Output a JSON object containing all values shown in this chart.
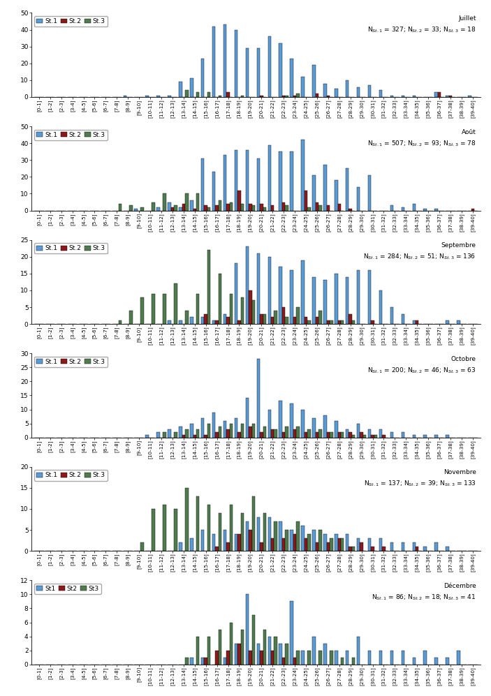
{
  "months": [
    "Juillet",
    "Août",
    "Septembre",
    "Octobre",
    "Novembre",
    "Décembre"
  ],
  "legend_labels_main": [
    "St.1",
    "St.2",
    "St.3"
  ],
  "legend_labels_last": [
    "St1",
    "St2",
    "St3"
  ],
  "colors": [
    "#5B9BD5",
    "#8B1A1A",
    "#4E7C4E"
  ],
  "annotations": [
    "Juillet\nN$_{St.1}$ = 327; N$_{St.2}$ = 33; N$_{St.3}$ = 18",
    "Août\nN$_{St.1}$ = 507; N$_{St.2}$ = 93; N$_{St.3}$ = 78",
    "Septembre\nN$_{St.1}$ = 284; N$_{St.2}$ = 51; N$_{St.3}$ = 136",
    "Octobre\nN$_{St.1}$ = 200; N$_{St.2}$ = 46; N$_{St.3}$ = 63",
    "Novembre\nN$_{St.1}$ = 137; N$_{St.2}$ = 39; N$_{St.3}$ = 133",
    "Décembre\nN$_{St.1}$ = 86; N$_{St.2}$ = 18; N$_{St.3}$ = 41"
  ],
  "ylims": [
    50,
    50,
    25,
    30,
    20,
    12
  ],
  "yticks": [
    [
      0,
      10,
      20,
      30,
      40,
      50
    ],
    [
      0,
      10,
      20,
      30,
      40,
      50
    ],
    [
      0,
      5,
      10,
      15,
      20,
      25
    ],
    [
      0,
      5,
      10,
      15,
      20,
      25,
      30
    ],
    [
      0,
      5,
      10,
      15,
      20
    ],
    [
      0,
      2,
      4,
      6,
      8,
      10,
      12
    ]
  ],
  "bins": [
    "[0-1]",
    "[1-2]",
    "[2-3]",
    "[3-4]",
    "[4-5]",
    "[5-6]",
    "[6-7]",
    "[7-8]",
    "[8-9]",
    "[9-10]",
    "[10-11]",
    "[11-12]",
    "[12-13]",
    "[13-14]",
    "[14-15]",
    "[15-16]",
    "[16-17]",
    "[17-18]",
    "[18-19]",
    "[19-20]",
    "[20-21]",
    "[21-22]",
    "[22-23]",
    "[23-24]",
    "[24-25]",
    "[25-26]",
    "[26-27]",
    "[27-28]",
    "[28-29]",
    "[29-30]",
    "[30-31]",
    "[31-32]",
    "[32-33]",
    "[33-34]",
    "[34-35]",
    "[35-36]",
    "[36-37]",
    "[37-38]",
    "[38-39]",
    "[39-40]"
  ],
  "data": {
    "Juillet": {
      "St.1": [
        0,
        0,
        0,
        0,
        0,
        0,
        0,
        0,
        1,
        0,
        1,
        1,
        1,
        9,
        11,
        23,
        42,
        43,
        40,
        29,
        29,
        36,
        32,
        23,
        12,
        19,
        8,
        5,
        10,
        6,
        7,
        4,
        1,
        1,
        1,
        0,
        3,
        1,
        0,
        1
      ],
      "St.2": [
        0,
        0,
        0,
        0,
        0,
        0,
        0,
        0,
        0,
        0,
        0,
        0,
        0,
        0,
        0,
        0,
        0,
        3,
        0,
        0,
        1,
        0,
        1,
        1,
        0,
        2,
        1,
        0,
        0,
        0,
        0,
        0,
        0,
        0,
        0,
        0,
        3,
        1,
        0,
        0
      ],
      "St.3": [
        0,
        0,
        0,
        0,
        0,
        0,
        0,
        0,
        0,
        0,
        0,
        0,
        0,
        4,
        3,
        3,
        1,
        0,
        1,
        0,
        0,
        0,
        1,
        2,
        0,
        0,
        0,
        0,
        0,
        0,
        0,
        0,
        0,
        0,
        0,
        0,
        0,
        0,
        0,
        0
      ]
    },
    "Août": {
      "St.1": [
        0,
        0,
        0,
        0,
        0,
        0,
        0,
        0,
        0,
        1,
        0,
        2,
        5,
        2,
        6,
        31,
        23,
        33,
        36,
        36,
        31,
        39,
        35,
        35,
        42,
        21,
        27,
        18,
        25,
        14,
        21,
        0,
        3,
        2,
        4,
        1,
        1,
        0,
        0,
        0
      ],
      "St.2": [
        0,
        0,
        0,
        0,
        0,
        0,
        0,
        0,
        0,
        0,
        0,
        0,
        2,
        4,
        1,
        3,
        3,
        4,
        12,
        4,
        4,
        3,
        5,
        0,
        12,
        5,
        3,
        4,
        1,
        0,
        0,
        0,
        0,
        0,
        0,
        0,
        0,
        0,
        0,
        1
      ],
      "St.3": [
        0,
        0,
        0,
        0,
        0,
        0,
        0,
        4,
        3,
        2,
        5,
        10,
        3,
        10,
        10,
        2,
        6,
        5,
        4,
        3,
        2,
        0,
        3,
        0,
        2,
        3,
        0,
        0,
        0,
        0,
        0,
        0,
        0,
        0,
        0,
        0,
        0,
        0,
        0,
        0
      ]
    },
    "Septembre": {
      "St.1": [
        0,
        0,
        0,
        0,
        0,
        0,
        0,
        0,
        0,
        0,
        0,
        0,
        1,
        1,
        2,
        2,
        1,
        3,
        18,
        23,
        21,
        20,
        17,
        16,
        19,
        14,
        13,
        15,
        14,
        16,
        16,
        10,
        5,
        3,
        1,
        0,
        0,
        1,
        1,
        0
      ],
      "St.2": [
        0,
        0,
        0,
        0,
        0,
        0,
        0,
        0,
        0,
        0,
        0,
        0,
        0,
        0,
        0,
        3,
        1,
        2,
        1,
        10,
        3,
        2,
        5,
        2,
        2,
        2,
        1,
        1,
        3,
        0,
        1,
        0,
        0,
        0,
        1,
        0,
        0,
        0,
        0,
        0
      ],
      "St.3": [
        0,
        0,
        0,
        0,
        0,
        0,
        0,
        1,
        4,
        8,
        9,
        9,
        12,
        4,
        9,
        22,
        15,
        9,
        8,
        7,
        3,
        4,
        2,
        5,
        1,
        4,
        1,
        1,
        1,
        0,
        0,
        0,
        0,
        0,
        0,
        0,
        0,
        0,
        0,
        0
      ]
    },
    "Octobre": {
      "St.1": [
        0,
        0,
        0,
        0,
        0,
        0,
        0,
        0,
        0,
        0,
        1,
        2,
        3,
        4,
        5,
        7,
        9,
        6,
        7,
        14,
        28,
        10,
        13,
        12,
        10,
        7,
        8,
        6,
        3,
        5,
        3,
        3,
        2,
        2,
        1,
        1,
        1,
        1,
        0,
        0
      ],
      "St.2": [
        0,
        0,
        0,
        0,
        0,
        0,
        0,
        0,
        0,
        0,
        0,
        0,
        0,
        1,
        1,
        1,
        2,
        3,
        2,
        4,
        2,
        3,
        2,
        3,
        2,
        2,
        2,
        2,
        2,
        2,
        1,
        1,
        0,
        0,
        0,
        0,
        0,
        0,
        0,
        0
      ],
      "St.3": [
        0,
        0,
        0,
        0,
        0,
        0,
        0,
        0,
        0,
        0,
        0,
        2,
        2,
        3,
        3,
        5,
        4,
        5,
        5,
        5,
        4,
        3,
        4,
        4,
        3,
        3,
        2,
        2,
        1,
        1,
        1,
        0,
        0,
        0,
        0,
        0,
        0,
        0,
        0,
        0
      ]
    },
    "Novembre": {
      "St.1": [
        0,
        0,
        0,
        0,
        0,
        0,
        0,
        0,
        0,
        0,
        0,
        0,
        0,
        2,
        3,
        5,
        4,
        5,
        4,
        7,
        8,
        8,
        7,
        5,
        6,
        5,
        4,
        4,
        4,
        3,
        3,
        3,
        2,
        2,
        2,
        1,
        2,
        1,
        0,
        0
      ],
      "St.2": [
        0,
        0,
        0,
        0,
        0,
        0,
        0,
        0,
        0,
        0,
        0,
        0,
        0,
        0,
        0,
        0,
        1,
        2,
        4,
        5,
        2,
        3,
        3,
        4,
        3,
        2,
        2,
        3,
        1,
        2,
        1,
        1,
        0,
        0,
        1,
        0,
        0,
        0,
        0,
        0
      ],
      "St.3": [
        0,
        0,
        0,
        0,
        0,
        0,
        0,
        0,
        0,
        2,
        10,
        11,
        10,
        15,
        13,
        11,
        9,
        11,
        9,
        13,
        9,
        7,
        5,
        7,
        4,
        5,
        3,
        3,
        1,
        0,
        0,
        0,
        0,
        0,
        0,
        0,
        0,
        0,
        0,
        0
      ]
    },
    "Décembre": {
      "St.1": [
        0,
        0,
        0,
        0,
        0,
        0,
        0,
        0,
        0,
        0,
        0,
        0,
        0,
        0,
        1,
        1,
        0,
        1,
        3,
        10,
        3,
        4,
        3,
        9,
        2,
        4,
        3,
        2,
        2,
        4,
        2,
        2,
        2,
        2,
        1,
        2,
        1,
        1,
        2,
        0
      ],
      "St.2": [
        0,
        0,
        0,
        0,
        0,
        0,
        0,
        0,
        0,
        0,
        0,
        0,
        0,
        0,
        0,
        1,
        2,
        2,
        3,
        2,
        2,
        2,
        1,
        1,
        0,
        0,
        0,
        0,
        0,
        0,
        0,
        0,
        0,
        0,
        0,
        0,
        0,
        0,
        0,
        0
      ],
      "St.3": [
        0,
        0,
        0,
        0,
        0,
        0,
        0,
        0,
        0,
        0,
        0,
        0,
        0,
        1,
        4,
        4,
        5,
        6,
        5,
        7,
        5,
        4,
        3,
        2,
        2,
        2,
        2,
        1,
        1,
        0,
        0,
        0,
        0,
        0,
        0,
        0,
        0,
        0,
        0,
        0
      ]
    }
  },
  "background_color": "#FFFFFF",
  "bar_width": 0.28,
  "figsize": [
    7.03,
    9.97
  ],
  "dpi": 100
}
